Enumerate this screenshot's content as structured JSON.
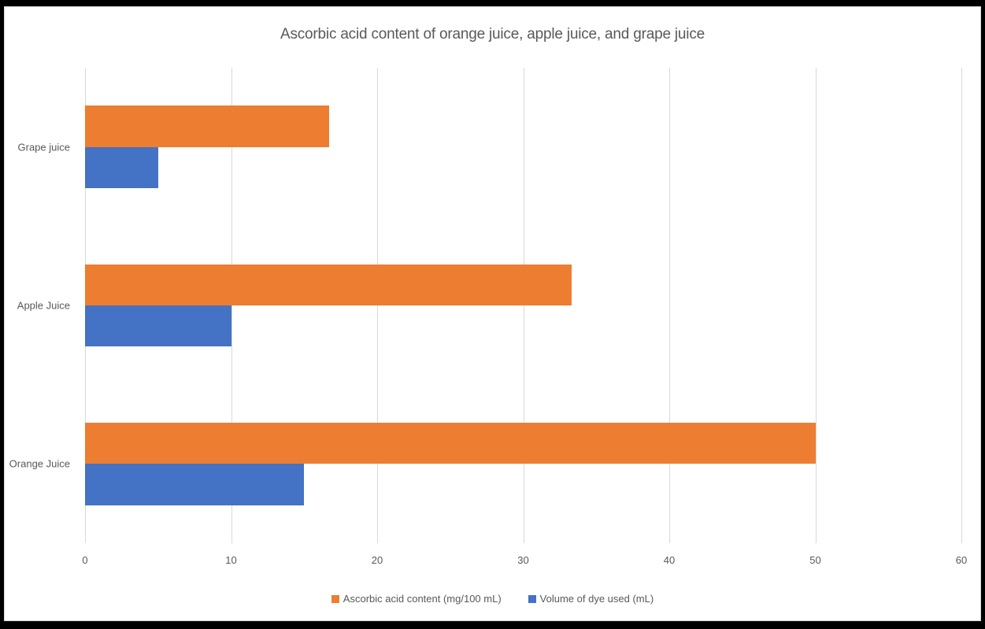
{
  "chart_data": {
    "type": "bar",
    "orientation": "horizontal",
    "title": "Ascorbic acid content of orange juice, apple juice, and grape juice",
    "categories": [
      "Grape juice",
      "Apple Juice",
      "Orange Juice"
    ],
    "series": [
      {
        "name": "Ascorbic acid content (mg/100 mL)",
        "color": "#ED7D31",
        "values": [
          16.7,
          33.3,
          50
        ]
      },
      {
        "name": "Volume of dye used (mL)",
        "color": "#4472C4",
        "values": [
          5,
          10,
          15
        ]
      }
    ],
    "xlabel": "",
    "ylabel": "",
    "xlim": [
      0,
      60
    ],
    "x_ticks": [
      0,
      10,
      20,
      30,
      40,
      50,
      60
    ],
    "grid": "vertical-gridlines-on",
    "gridline_color": "#D9D9D9",
    "text_color": "#595959",
    "legend_position": "bottom",
    "frame_color": "#000000",
    "chart_border_color": "#D9D9D9",
    "background_color": "#FFFFFF"
  }
}
